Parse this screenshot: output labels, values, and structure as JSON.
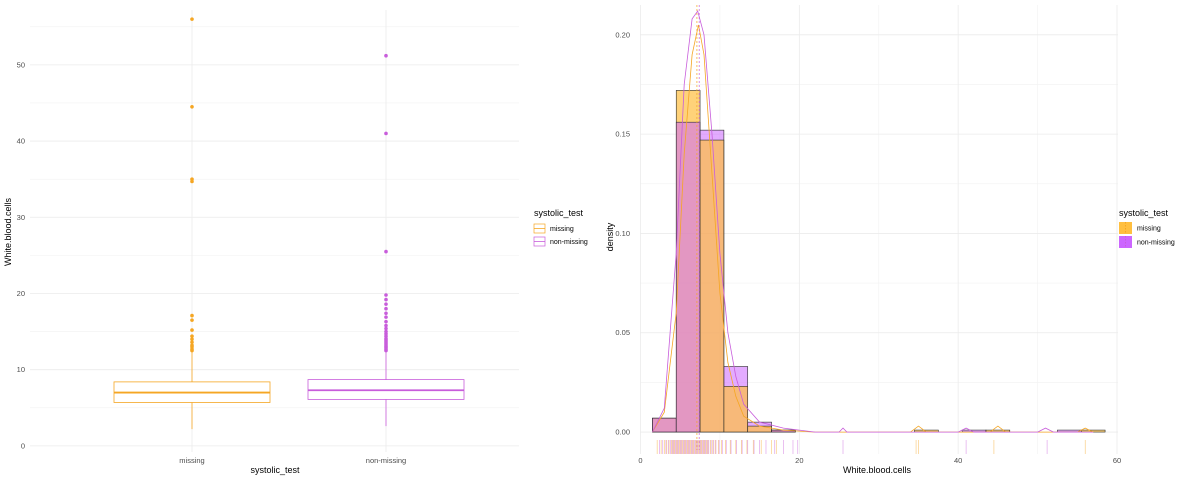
{
  "chart_data": [
    {
      "type": "boxplot",
      "xlabel": "systolic_test",
      "ylabel": "White.blood.cells",
      "categories": [
        "missing",
        "non-missing"
      ],
      "ylim": [
        0,
        56
      ],
      "yticks": [
        0,
        10,
        20,
        30,
        40,
        50
      ],
      "grid": true,
      "legend": {
        "title": "systolic_test",
        "position": "right",
        "entries": [
          "missing",
          "non-missing"
        ]
      },
      "series": [
        {
          "name": "missing",
          "color": "#f5a623",
          "whisker_low": 2.2,
          "q1": 5.7,
          "median": 7.0,
          "q3": 8.4,
          "whisker_high": 12.3,
          "outliers": [
            12.5,
            12.7,
            13.0,
            13.2,
            13.6,
            14.0,
            14.4,
            15.2,
            16.5,
            17.1,
            34.7,
            35.0,
            44.5,
            56.0
          ]
        },
        {
          "name": "non-missing",
          "color": "#c85ddb",
          "whisker_low": 2.6,
          "q1": 6.1,
          "median": 7.3,
          "q3": 8.7,
          "whisker_high": 12.4,
          "outliers": [
            12.5,
            12.7,
            12.9,
            13.1,
            13.3,
            13.5,
            13.7,
            13.9,
            14.1,
            14.4,
            14.7,
            15.0,
            15.4,
            15.8,
            16.3,
            16.9,
            17.4,
            18.0,
            18.6,
            19.2,
            19.8,
            25.5,
            41.0,
            51.2
          ]
        }
      ]
    },
    {
      "type": "histogram",
      "xlabel": "White.blood.cells",
      "ylabel": "density",
      "xlim": [
        0,
        60
      ],
      "ylim": [
        0,
        0.215
      ],
      "xticks": [
        0,
        20,
        40,
        60
      ],
      "yticks": [
        0.0,
        0.05,
        0.1,
        0.15,
        0.2
      ],
      "ytick_labels": [
        "0.00",
        "0.05",
        "0.10",
        "0.15",
        "0.20"
      ],
      "grid": true,
      "bin_width": 3,
      "bin_starts": [
        1.5,
        4.5,
        7.5,
        10.5,
        13.5,
        16.5,
        19.5,
        22.5,
        25.5,
        28.5,
        31.5,
        34.5,
        37.5,
        40.5,
        43.5,
        46.5,
        49.5,
        52.5,
        55.5
      ],
      "mean_lines": [
        7.1,
        7.4
      ],
      "legend": {
        "title": "systolic_test",
        "position": "right",
        "entries": [
          "missing",
          "non-missing"
        ]
      },
      "series": [
        {
          "name": "missing",
          "color": "#f5a623",
          "density": [
            0.007,
            0.172,
            0.147,
            0.023,
            0.003,
            0.001,
            0.0,
            0.0,
            0.0,
            0.0,
            0.0,
            0.001,
            0.0,
            0.0,
            0.001,
            0.0,
            0.0,
            0.0,
            0.001
          ],
          "curve_x": [
            1.5,
            3,
            4.5,
            5.5,
            6.5,
            7.3,
            8,
            9,
            10,
            11,
            12,
            13,
            15,
            18,
            22,
            30,
            34,
            35,
            36,
            40,
            44,
            45,
            46,
            52,
            55,
            56,
            57
          ],
          "curve_y": [
            0,
            0.01,
            0.06,
            0.14,
            0.19,
            0.205,
            0.19,
            0.13,
            0.07,
            0.035,
            0.018,
            0.008,
            0.003,
            0.001,
            0,
            0,
            0,
            0.003,
            0,
            0,
            0,
            0.003,
            0,
            0,
            0,
            0.002,
            0
          ]
        },
        {
          "name": "non-missing",
          "color": "#c85ddb",
          "density": [
            0.007,
            0.156,
            0.152,
            0.033,
            0.005,
            0.001,
            0.0,
            0.0,
            0.0,
            0.0,
            0.0,
            0.0,
            0.0,
            0.001,
            0.0,
            0.0,
            0.0,
            0.001,
            0.0
          ],
          "curve_x": [
            1.5,
            3,
            4.5,
            5.5,
            6.5,
            7.2,
            8,
            9,
            10,
            11,
            12,
            13,
            15,
            18,
            22,
            25,
            25.5,
            26,
            30,
            40,
            41,
            42,
            50,
            51,
            52,
            57
          ],
          "curve_y": [
            0,
            0.012,
            0.09,
            0.175,
            0.208,
            0.212,
            0.2,
            0.15,
            0.09,
            0.05,
            0.028,
            0.014,
            0.005,
            0.002,
            0,
            0,
            0.002,
            0,
            0,
            0,
            0.002,
            0,
            0,
            0.002,
            0,
            0
          ]
        }
      ],
      "rug": {
        "missing": [
          2.1,
          2.6,
          3.0,
          3.3,
          3.6,
          3.9,
          4.1,
          4.3,
          4.5,
          4.7,
          4.9,
          5.1,
          5.3,
          5.5,
          5.7,
          5.9,
          6.1,
          6.3,
          6.5,
          6.7,
          6.9,
          7.1,
          7.3,
          7.5,
          7.7,
          7.9,
          8.1,
          8.3,
          8.5,
          8.8,
          9.1,
          9.4,
          9.8,
          10.2,
          10.7,
          11.3,
          12.0,
          12.7,
          13.4,
          14.2,
          15.2,
          16.5,
          17.1,
          34.7,
          35.0,
          44.5,
          56.0
        ],
        "non-missing": [
          2.4,
          2.8,
          3.2,
          3.5,
          3.8,
          4.0,
          4.2,
          4.4,
          4.6,
          4.8,
          5.0,
          5.2,
          5.4,
          5.6,
          5.8,
          6.0,
          6.2,
          6.4,
          6.6,
          6.8,
          7.0,
          7.2,
          7.4,
          7.6,
          7.8,
          8.0,
          8.2,
          8.4,
          8.6,
          8.9,
          9.2,
          9.5,
          9.9,
          10.3,
          10.8,
          11.4,
          12.1,
          12.8,
          13.5,
          14.3,
          15.0,
          15.8,
          16.9,
          18.0,
          19.2,
          19.8,
          25.5,
          41.0,
          51.2
        ]
      }
    }
  ]
}
